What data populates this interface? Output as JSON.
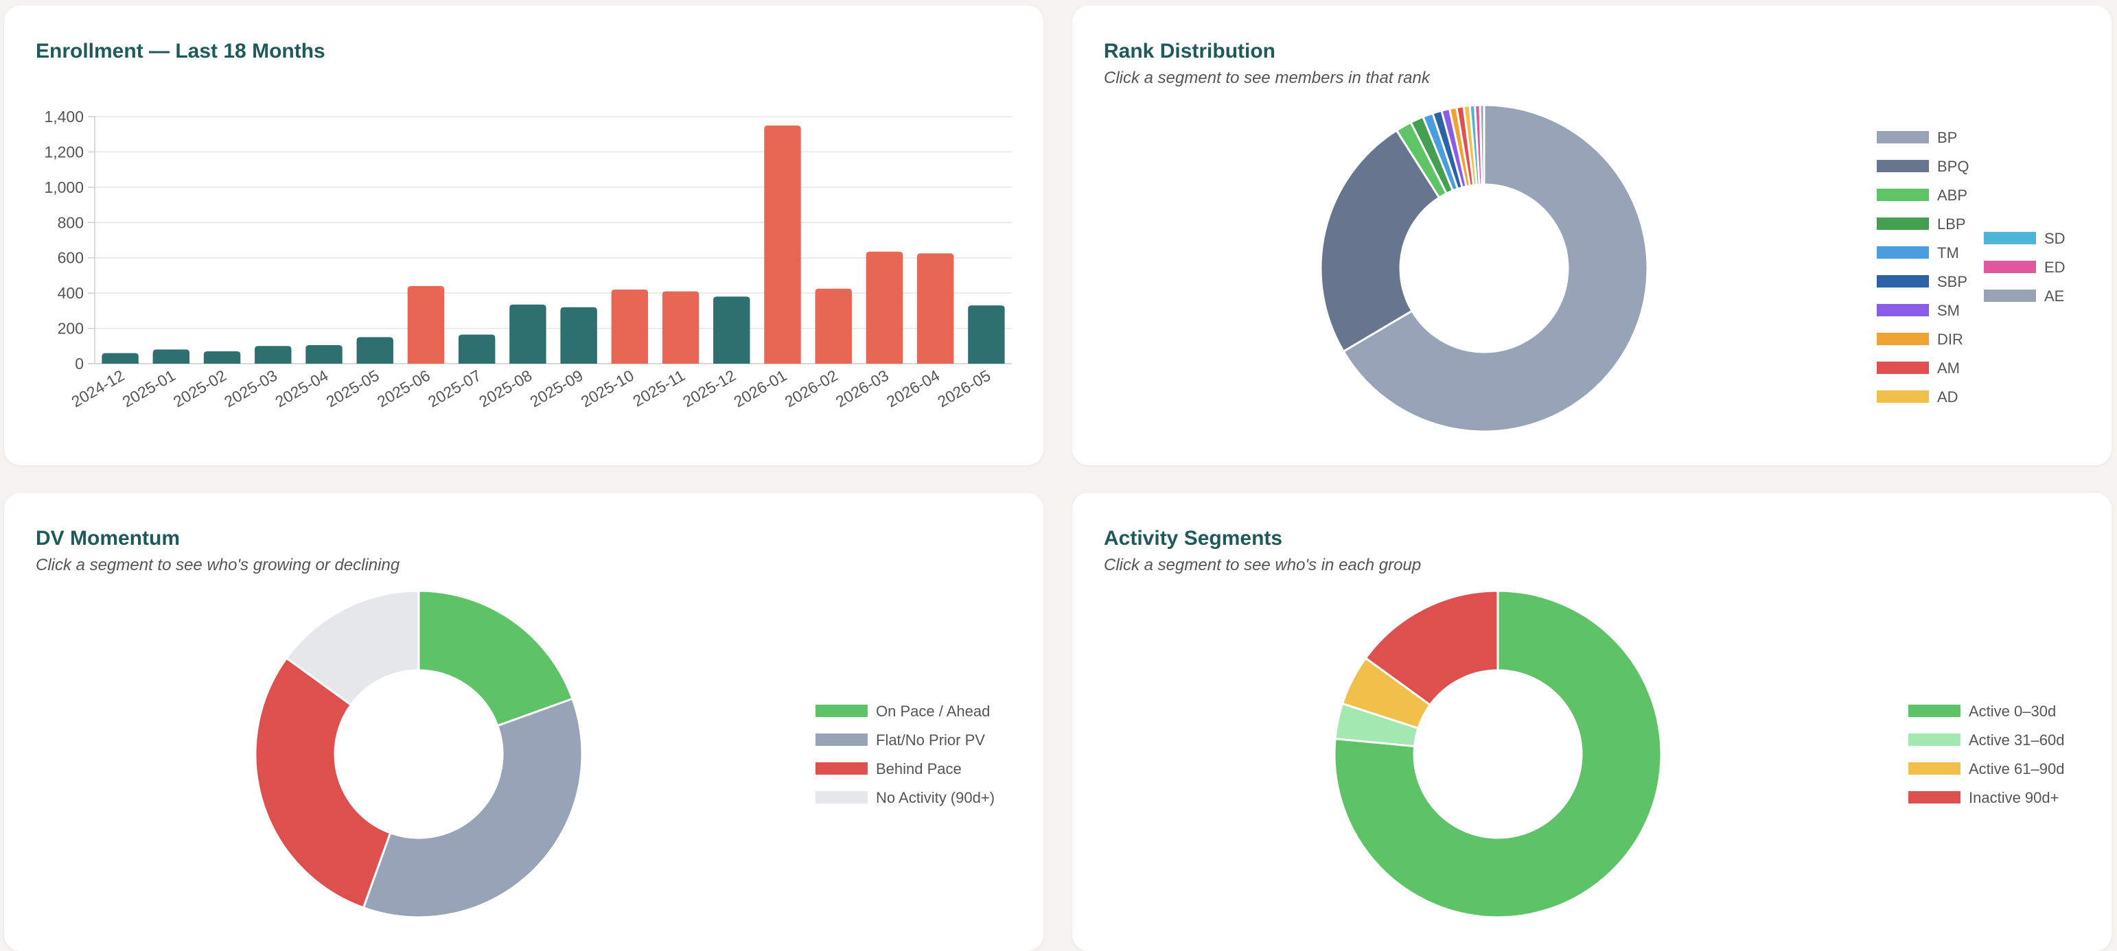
{
  "enrollment": {
    "title": "Enrollment — Last 18 Months",
    "chart_data": {
      "type": "bar",
      "title": "Enrollment — Last 18 Months",
      "categories": [
        "2024-12",
        "2025-01",
        "2025-02",
        "2025-03",
        "2025-04",
        "2025-05",
        "2025-06",
        "2025-07",
        "2025-08",
        "2025-09",
        "2025-10",
        "2025-11",
        "2025-12",
        "2026-01",
        "2026-02",
        "2026-03",
        "2026-04",
        "2026-05"
      ],
      "values": [
        60,
        80,
        70,
        100,
        105,
        150,
        440,
        165,
        335,
        320,
        420,
        410,
        380,
        1350,
        425,
        635,
        625,
        330
      ],
      "highlighted": [
        false,
        false,
        false,
        false,
        false,
        false,
        true,
        false,
        false,
        false,
        true,
        true,
        false,
        true,
        true,
        true,
        true,
        false
      ],
      "colors": {
        "normal": "#2e7070",
        "highlight": "#e86654"
      },
      "ylim": [
        0,
        1400
      ],
      "yticks": [
        0,
        200,
        400,
        600,
        800,
        1000,
        1200,
        1400
      ],
      "ytick_labels": [
        "0",
        "200",
        "400",
        "600",
        "800",
        "1,000",
        "1,200",
        "1,400"
      ],
      "grid": true
    }
  },
  "rank": {
    "title": "Rank Distribution",
    "subtitle": "Click a segment to see members in that rank",
    "chart_data": {
      "type": "pie",
      "donut": true,
      "labels": [
        "BP",
        "BPQ",
        "ABP",
        "LBP",
        "TM",
        "SBP",
        "SM",
        "DIR",
        "AM",
        "AD",
        "SD",
        "ED",
        "AE"
      ],
      "values": [
        66.5,
        24.5,
        1.6,
        1.3,
        1.0,
        0.9,
        0.8,
        0.7,
        0.7,
        0.6,
        0.5,
        0.5,
        0.4
      ],
      "colors": [
        "#97a3b7",
        "#67758f",
        "#5fc466",
        "#44a050",
        "#4a9ee0",
        "#2c63a6",
        "#8a5de8",
        "#f0a232",
        "#e05050",
        "#f2c04a",
        "#4cb4d4",
        "#e0579e",
        "#97a3b7"
      ],
      "legend": "right"
    }
  },
  "dv": {
    "title": "DV Momentum",
    "subtitle": "Click a segment to see who's growing or declining",
    "chart_data": {
      "type": "pie",
      "donut": true,
      "labels": [
        "On Pace / Ahead",
        "Flat/No Prior PV",
        "Behind Pace",
        "No Activity (90d+)"
      ],
      "values": [
        19.5,
        36,
        29.5,
        15
      ],
      "colors": [
        "#5dc366",
        "#97a3b7",
        "#de504d",
        "#e5e7eb"
      ],
      "legend": "right"
    }
  },
  "activity": {
    "title": "Activity Segments",
    "subtitle": "Click a segment to see who's in each group",
    "chart_data": {
      "type": "pie",
      "donut": true,
      "labels": [
        "Active 0–30d",
        "Active 31–60d",
        "Active 61–90d",
        "Inactive 90d+"
      ],
      "values": [
        76.5,
        3.5,
        5,
        15
      ],
      "colors": [
        "#5dc366",
        "#a3e8b0",
        "#f0c04a",
        "#de504d"
      ],
      "legend": "right"
    }
  }
}
